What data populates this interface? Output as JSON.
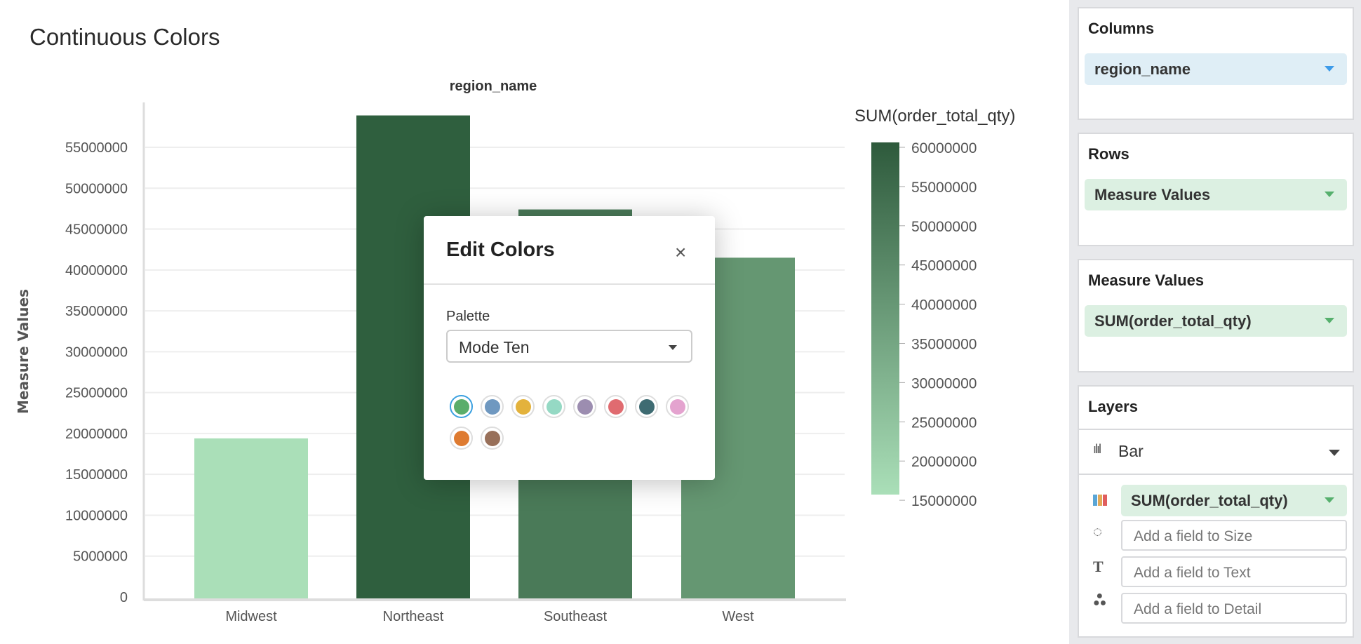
{
  "page": {
    "title": "Continuous Colors"
  },
  "chart_data": {
    "type": "bar",
    "title": "region_name",
    "xlabel": "",
    "ylabel": "Measure Values",
    "categories": [
      "Midwest",
      "Northeast",
      "Southeast",
      "West"
    ],
    "values": [
      19400000,
      58900000,
      47400000,
      41500000
    ],
    "ylim": [
      0,
      60000000
    ],
    "yticks": [
      "0",
      "5000000",
      "10000000",
      "15000000",
      "20000000",
      "25000000",
      "30000000",
      "35000000",
      "40000000",
      "45000000",
      "50000000",
      "55000000"
    ],
    "grid": true,
    "colors": [
      "#aadfb8",
      "#2f5f3e",
      "#4a7a58",
      "#659772"
    ],
    "legend": {
      "title": "SUM(order_total_qty)",
      "placement": "right",
      "min": 15000000,
      "max": 60000000,
      "color_low": "#aadfb8",
      "color_high": "#2e5a3c",
      "ticks": [
        "60000000",
        "55000000",
        "50000000",
        "45000000",
        "40000000",
        "35000000",
        "30000000",
        "25000000",
        "20000000",
        "15000000"
      ]
    }
  },
  "modal": {
    "title": "Edit Colors",
    "close": "×",
    "palette_label": "Palette",
    "palette_value": "Mode Ten",
    "swatches": [
      "#5aad6b",
      "#6f98c0",
      "#e3b23c",
      "#95d9c4",
      "#9c8db0",
      "#e06b70",
      "#3e6b72",
      "#e4a3cf",
      "#de7b31",
      "#98705a"
    ]
  },
  "sidebar": {
    "columns": {
      "title": "Columns",
      "pill": "region_name"
    },
    "rows": {
      "title": "Rows",
      "pill": "Measure Values"
    },
    "measure_values": {
      "title": "Measure Values",
      "pill": "SUM(order_total_qty)"
    },
    "layers": {
      "title": "Layers",
      "type": "Bar",
      "color_pill": "SUM(order_total_qty)",
      "size_placeholder": "Add a field to Size",
      "text_placeholder": "Add a field to Text",
      "detail_placeholder": "Add a field to Detail"
    }
  }
}
